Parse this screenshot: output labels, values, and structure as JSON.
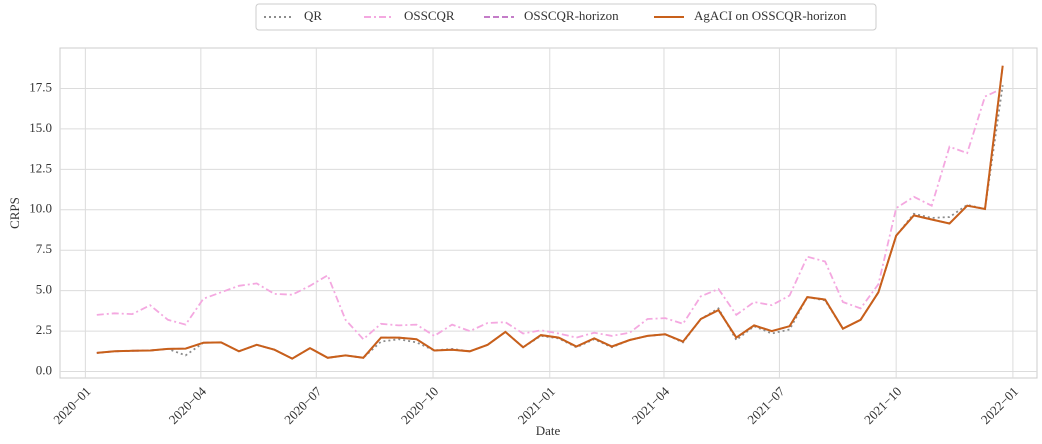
{
  "chart_data": {
    "type": "line",
    "x_label": "Date",
    "y_label": "CRPS",
    "x": [
      "2020-01-10",
      "2020-01-24",
      "2020-02-07",
      "2020-02-21",
      "2020-03-06",
      "2020-03-20",
      "2020-04-03",
      "2020-04-17",
      "2020-05-01",
      "2020-05-15",
      "2020-05-29",
      "2020-06-12",
      "2020-06-26",
      "2020-07-10",
      "2020-07-24",
      "2020-08-07",
      "2020-08-21",
      "2020-09-04",
      "2020-09-18",
      "2020-10-02",
      "2020-10-16",
      "2020-10-30",
      "2020-11-13",
      "2020-11-27",
      "2020-12-11",
      "2020-12-25",
      "2021-01-08",
      "2021-01-22",
      "2021-02-05",
      "2021-02-19",
      "2021-03-05",
      "2021-03-19",
      "2021-04-02",
      "2021-04-16",
      "2021-04-30",
      "2021-05-14",
      "2021-05-28",
      "2021-06-11",
      "2021-06-25",
      "2021-07-09",
      "2021-07-23",
      "2021-08-06",
      "2021-08-20",
      "2021-09-03",
      "2021-09-17",
      "2021-10-01",
      "2021-10-15",
      "2021-10-29",
      "2021-11-12",
      "2021-11-26",
      "2021-12-10",
      "2021-12-24"
    ],
    "series": [
      {
        "name": "QR",
        "color": "#8c8c8c",
        "dash": "2,3",
        "values": [
          1.15,
          1.25,
          1.28,
          1.3,
          1.4,
          1.0,
          1.78,
          1.8,
          1.25,
          1.65,
          1.35,
          0.8,
          1.45,
          0.85,
          1.0,
          0.85,
          1.85,
          2.0,
          1.8,
          1.3,
          1.4,
          1.25,
          1.65,
          2.45,
          1.5,
          2.2,
          2.05,
          1.5,
          2.0,
          1.5,
          1.95,
          2.2,
          2.3,
          1.8,
          3.25,
          3.9,
          1.95,
          2.8,
          2.35,
          2.6,
          4.6,
          4.4,
          2.65,
          3.2,
          4.9,
          8.4,
          9.75,
          9.5,
          9.55,
          10.3,
          10.05,
          17.7
        ]
      },
      {
        "name": "OSSCQR",
        "color": "#f4a8e0",
        "dash": "7,3,2,3",
        "values": [
          3.5,
          3.6,
          3.55,
          4.1,
          3.2,
          2.9,
          4.5,
          4.9,
          5.3,
          5.45,
          4.8,
          4.75,
          5.3,
          5.95,
          3.2,
          2.0,
          2.95,
          2.85,
          2.9,
          2.2,
          2.9,
          2.5,
          3.0,
          3.05,
          2.35,
          2.55,
          2.35,
          2.1,
          2.4,
          2.2,
          2.4,
          3.25,
          3.3,
          2.95,
          4.65,
          5.1,
          3.5,
          4.3,
          4.1,
          4.7,
          7.1,
          6.8,
          4.3,
          3.9,
          5.4,
          10.1,
          10.8,
          10.25,
          13.9,
          13.5,
          17.0,
          17.5
        ]
      },
      {
        "name": "OSSCQR-horizon",
        "color": "#c47cc8",
        "dash": "6,3",
        "values": [
          1.15,
          1.25,
          1.28,
          1.3,
          1.4,
          1.42,
          1.78,
          1.8,
          1.25,
          1.65,
          1.35,
          0.8,
          1.45,
          0.85,
          1.0,
          0.85,
          2.1,
          2.1,
          2.0,
          1.3,
          1.35,
          1.25,
          1.65,
          2.45,
          1.5,
          2.25,
          2.1,
          1.55,
          2.05,
          1.55,
          1.95,
          2.2,
          2.3,
          1.85,
          3.25,
          3.8,
          2.1,
          2.85,
          2.5,
          2.8,
          4.6,
          4.45,
          2.65,
          3.2,
          4.9,
          8.4,
          9.65,
          9.4,
          9.15,
          10.25,
          10.05,
          18.9
        ]
      },
      {
        "name": "AgACI on OSSCQR-horizon",
        "color": "#c8601a",
        "dash": "none",
        "values": [
          1.15,
          1.25,
          1.28,
          1.3,
          1.4,
          1.42,
          1.78,
          1.8,
          1.25,
          1.65,
          1.35,
          0.8,
          1.45,
          0.85,
          1.0,
          0.85,
          2.1,
          2.1,
          2.0,
          1.3,
          1.35,
          1.25,
          1.65,
          2.45,
          1.5,
          2.25,
          2.1,
          1.55,
          2.05,
          1.55,
          1.95,
          2.2,
          2.3,
          1.85,
          3.25,
          3.8,
          2.1,
          2.85,
          2.5,
          2.8,
          4.6,
          4.45,
          2.65,
          3.2,
          4.9,
          8.4,
          9.65,
          9.4,
          9.15,
          10.25,
          10.05,
          18.9
        ]
      }
    ],
    "xlim": [
      "2019-12-12",
      "2022-01-20"
    ],
    "xticks": [
      {
        "value": "2020-01-01",
        "label": "2020−01"
      },
      {
        "value": "2020-04-01",
        "label": "2020−04"
      },
      {
        "value": "2020-07-01",
        "label": "2020−07"
      },
      {
        "value": "2020-10-01",
        "label": "2020−10"
      },
      {
        "value": "2021-01-01",
        "label": "2021−01"
      },
      {
        "value": "2021-04-01",
        "label": "2021−04"
      },
      {
        "value": "2021-07-01",
        "label": "2021−07"
      },
      {
        "value": "2021-10-01",
        "label": "2021−10"
      },
      {
        "value": "2022-01-01",
        "label": "2022−01"
      }
    ],
    "ylim": [
      -0.4,
      20
    ],
    "yticks": [
      {
        "value": 0,
        "label": "0.0"
      },
      2.5,
      {
        "value": 5,
        "label": "5.0"
      },
      7.5,
      {
        "value": 10,
        "label": "10.0"
      },
      12.5,
      {
        "value": 15,
        "label": "15.0"
      },
      17.5
    ],
    "grid": true,
    "legend": "top"
  }
}
